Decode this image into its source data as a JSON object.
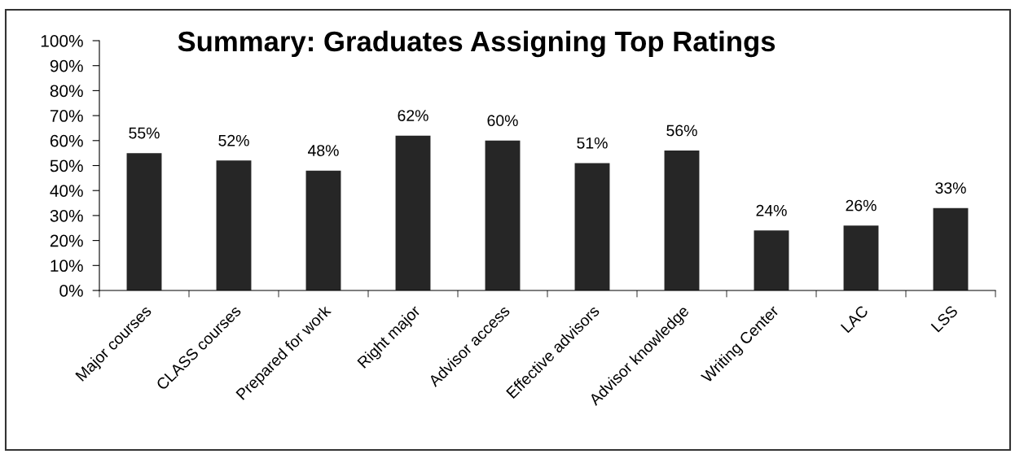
{
  "chart_data": {
    "type": "bar",
    "title": "Summary: Graduates Assigning Top Ratings",
    "categories": [
      "Major courses",
      "CLASS courses",
      "Prepared for work",
      "Right major",
      "Advisor access",
      "Effective advisors",
      "Advisor knowledge",
      "Writing Center",
      "LAC",
      "LSS"
    ],
    "values": [
      55,
      52,
      48,
      62,
      60,
      51,
      56,
      24,
      26,
      33
    ],
    "value_labels": [
      "55%",
      "52%",
      "48%",
      "62%",
      "60%",
      "51%",
      "56%",
      "24%",
      "26%",
      "33%"
    ],
    "color": "#262626",
    "ylim": [
      0,
      100
    ],
    "yticks": [
      {
        "value": 0,
        "label": "0%"
      },
      {
        "value": 10,
        "label": "10%"
      },
      {
        "value": 20,
        "label": "20%"
      },
      {
        "value": 30,
        "label": "30%"
      },
      {
        "value": 40,
        "label": "40%"
      },
      {
        "value": 50,
        "label": "50%"
      },
      {
        "value": 60,
        "label": "60%"
      },
      {
        "value": 70,
        "label": "70%"
      },
      {
        "value": 80,
        "label": "80%"
      },
      {
        "value": 90,
        "label": "90%"
      },
      {
        "value": 100,
        "label": "100%"
      }
    ],
    "grid": false,
    "legend": false
  }
}
